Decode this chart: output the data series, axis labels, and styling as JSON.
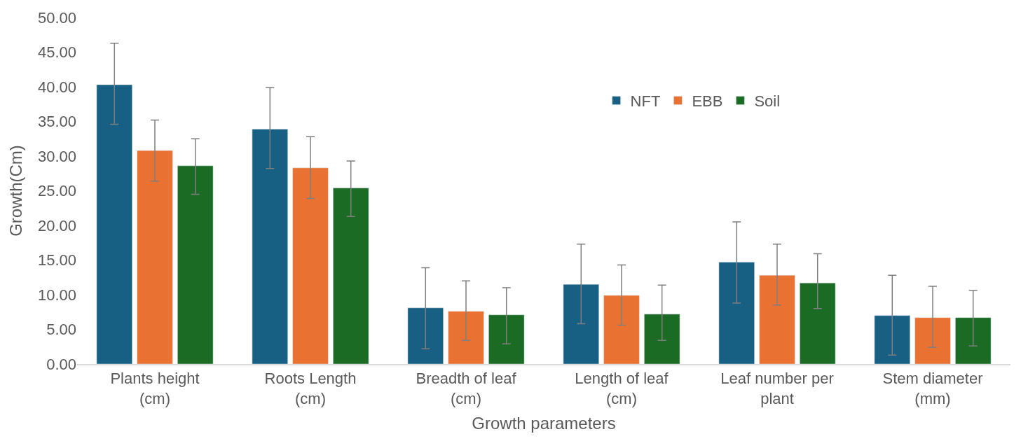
{
  "chart_data": {
    "type": "bar",
    "xlabel": "Growth parameters",
    "ylabel": "Growth(Cm)",
    "categories": [
      "Plants height\n(cm)",
      "Roots Length\n(cm)",
      "Breadth of leaf\n(cm)",
      "Length of leaf\n(cm)",
      "Leaf number per\nplant",
      "Stem diameter\n(mm)"
    ],
    "series": [
      {
        "name": "NFT",
        "color": "#175f83",
        "values": [
          40.3,
          33.9,
          8.1,
          11.5,
          14.7,
          7.0
        ],
        "errors": [
          [
            34.6,
            46.3
          ],
          [
            28.2,
            39.9
          ],
          [
            2.2,
            13.9
          ],
          [
            5.8,
            17.3
          ],
          [
            8.8,
            20.5
          ],
          [
            1.3,
            12.8
          ]
        ]
      },
      {
        "name": "EBB",
        "color": "#e97132",
        "values": [
          30.8,
          28.3,
          7.6,
          9.9,
          12.8,
          6.7
        ],
        "errors": [
          [
            26.4,
            35.2
          ],
          [
            23.9,
            32.8
          ],
          [
            3.4,
            12.0
          ],
          [
            5.6,
            14.3
          ],
          [
            8.5,
            17.3
          ],
          [
            2.4,
            11.2
          ]
        ]
      },
      {
        "name": "Soil",
        "color": "#1b6b24",
        "values": [
          28.6,
          25.4,
          7.1,
          7.2,
          11.7,
          6.7
        ],
        "errors": [
          [
            24.5,
            32.5
          ],
          [
            21.3,
            29.3
          ],
          [
            2.9,
            11.0
          ],
          [
            3.4,
            11.4
          ],
          [
            8.0,
            15.9
          ],
          [
            2.6,
            10.6
          ]
        ]
      }
    ],
    "ylim": [
      0,
      50
    ],
    "yticks": [
      {
        "value": 0,
        "label": "0.00"
      },
      {
        "value": 5,
        "label": "5.00"
      },
      {
        "value": 10,
        "label": "10.00"
      },
      {
        "value": 15,
        "label": "15.00"
      },
      {
        "value": 20,
        "label": "20.00"
      },
      {
        "value": 25,
        "label": "25.00"
      },
      {
        "value": 30,
        "label": "30.00"
      },
      {
        "value": 35,
        "label": "35.00"
      },
      {
        "value": 40,
        "label": "40.00"
      },
      {
        "value": 45,
        "label": "45.00"
      },
      {
        "value": 50,
        "label": "50.00"
      }
    ],
    "grid": false,
    "legend": "top right"
  }
}
